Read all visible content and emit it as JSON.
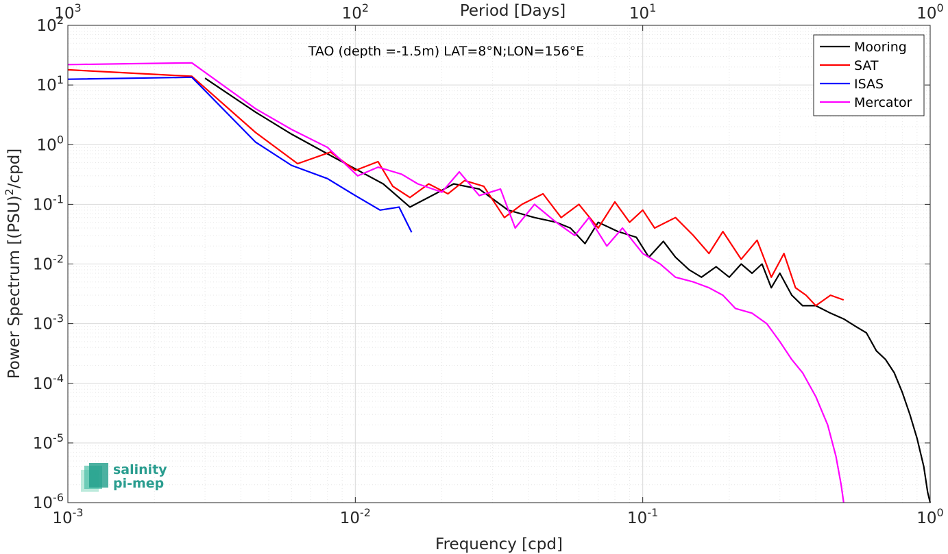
{
  "chart_data": {
    "type": "line",
    "title": "",
    "annotation": "TAO (depth =-1.5m) LAT=8°N;LON=156°E",
    "xlabel": "Frequency [cpd]",
    "ylabel": "Power Spectrum [(PSU)²/cpd]",
    "top_xlabel": "Period [Days]",
    "xscale": "log",
    "yscale": "log",
    "xlim": [
      0.001,
      1
    ],
    "ylim": [
      1e-06,
      100
    ],
    "grid": true,
    "legend_position": "top-right",
    "x_ticks": [
      {
        "value": 0.001,
        "base": "10",
        "exp": "-3"
      },
      {
        "value": 0.01,
        "base": "10",
        "exp": "-2"
      },
      {
        "value": 0.1,
        "base": "10",
        "exp": "-1"
      },
      {
        "value": 1,
        "base": "10",
        "exp": "0"
      }
    ],
    "top_ticks": [
      {
        "value": 0.001,
        "base": "10",
        "exp": "3"
      },
      {
        "value": 0.01,
        "base": "10",
        "exp": "2"
      },
      {
        "value": 0.1,
        "base": "10",
        "exp": "1"
      },
      {
        "value": 1,
        "base": "10",
        "exp": "0"
      }
    ],
    "y_ticks": [
      {
        "value": 1e-06,
        "base": "10",
        "exp": "-6"
      },
      {
        "value": 1e-05,
        "base": "10",
        "exp": "-5"
      },
      {
        "value": 0.0001,
        "base": "10",
        "exp": "-4"
      },
      {
        "value": 0.001,
        "base": "10",
        "exp": "-3"
      },
      {
        "value": 0.01,
        "base": "10",
        "exp": "-2"
      },
      {
        "value": 0.1,
        "base": "10",
        "exp": "-1"
      },
      {
        "value": 1,
        "base": "10",
        "exp": "0"
      },
      {
        "value": 10,
        "base": "10",
        "exp": "1"
      },
      {
        "value": 100,
        "base": "10",
        "exp": "2"
      }
    ],
    "series": [
      {
        "name": "Mooring",
        "color": "#000000",
        "points": [
          [
            0.003,
            13
          ],
          [
            0.0045,
            3.5
          ],
          [
            0.006,
            1.5
          ],
          [
            0.0085,
            0.6
          ],
          [
            0.0125,
            0.22
          ],
          [
            0.0155,
            0.09
          ],
          [
            0.019,
            0.15
          ],
          [
            0.022,
            0.22
          ],
          [
            0.027,
            0.18
          ],
          [
            0.034,
            0.08
          ],
          [
            0.042,
            0.06
          ],
          [
            0.05,
            0.05
          ],
          [
            0.056,
            0.04
          ],
          [
            0.063,
            0.022
          ],
          [
            0.07,
            0.05
          ],
          [
            0.082,
            0.035
          ],
          [
            0.095,
            0.028
          ],
          [
            0.105,
            0.013
          ],
          [
            0.118,
            0.024
          ],
          [
            0.13,
            0.013
          ],
          [
            0.145,
            0.008
          ],
          [
            0.16,
            0.006
          ],
          [
            0.18,
            0.009
          ],
          [
            0.2,
            0.006
          ],
          [
            0.22,
            0.01
          ],
          [
            0.24,
            0.007
          ],
          [
            0.26,
            0.01
          ],
          [
            0.28,
            0.004
          ],
          [
            0.3,
            0.007
          ],
          [
            0.33,
            0.003
          ],
          [
            0.36,
            0.002
          ],
          [
            0.4,
            0.002
          ],
          [
            0.45,
            0.0015
          ],
          [
            0.5,
            0.0012
          ],
          [
            0.55,
            0.0009
          ],
          [
            0.6,
            0.0007
          ],
          [
            0.65,
            0.00035
          ],
          [
            0.7,
            0.00025
          ],
          [
            0.75,
            0.00015
          ],
          [
            0.8,
            7e-05
          ],
          [
            0.85,
            3e-05
          ],
          [
            0.9,
            1.2e-05
          ],
          [
            0.95,
            4e-06
          ],
          [
            0.98,
            1.5e-06
          ],
          [
            1.0,
            1e-06
          ]
        ]
      },
      {
        "name": "SAT",
        "color": "#ff0000",
        "points": [
          [
            0.001,
            18
          ],
          [
            0.0027,
            14
          ],
          [
            0.0045,
            1.6
          ],
          [
            0.0063,
            0.48
          ],
          [
            0.0082,
            0.75
          ],
          [
            0.01,
            0.37
          ],
          [
            0.012,
            0.52
          ],
          [
            0.0135,
            0.2
          ],
          [
            0.0155,
            0.13
          ],
          [
            0.018,
            0.22
          ],
          [
            0.021,
            0.15
          ],
          [
            0.024,
            0.25
          ],
          [
            0.028,
            0.2
          ],
          [
            0.033,
            0.06
          ],
          [
            0.038,
            0.1
          ],
          [
            0.045,
            0.15
          ],
          [
            0.052,
            0.06
          ],
          [
            0.06,
            0.1
          ],
          [
            0.07,
            0.04
          ],
          [
            0.08,
            0.11
          ],
          [
            0.09,
            0.05
          ],
          [
            0.1,
            0.08
          ],
          [
            0.11,
            0.04
          ],
          [
            0.13,
            0.06
          ],
          [
            0.15,
            0.03
          ],
          [
            0.17,
            0.015
          ],
          [
            0.19,
            0.035
          ],
          [
            0.22,
            0.012
          ],
          [
            0.25,
            0.025
          ],
          [
            0.28,
            0.006
          ],
          [
            0.31,
            0.015
          ],
          [
            0.34,
            0.004
          ],
          [
            0.37,
            0.003
          ],
          [
            0.4,
            0.002
          ],
          [
            0.45,
            0.003
          ],
          [
            0.5,
            0.0025
          ]
        ]
      },
      {
        "name": "ISAS",
        "color": "#0000ff",
        "points": [
          [
            0.001,
            12.5
          ],
          [
            0.0027,
            13.5
          ],
          [
            0.0045,
            1.1
          ],
          [
            0.006,
            0.45
          ],
          [
            0.008,
            0.27
          ],
          [
            0.01,
            0.14
          ],
          [
            0.0122,
            0.08
          ],
          [
            0.0142,
            0.09
          ],
          [
            0.0157,
            0.034
          ]
        ]
      },
      {
        "name": "Mercator",
        "color": "#ff00ff",
        "points": [
          [
            0.001,
            22
          ],
          [
            0.0027,
            23.5
          ],
          [
            0.0045,
            4
          ],
          [
            0.006,
            1.8
          ],
          [
            0.008,
            0.9
          ],
          [
            0.0102,
            0.3
          ],
          [
            0.012,
            0.42
          ],
          [
            0.0145,
            0.32
          ],
          [
            0.0165,
            0.22
          ],
          [
            0.02,
            0.16
          ],
          [
            0.023,
            0.35
          ],
          [
            0.027,
            0.14
          ],
          [
            0.032,
            0.18
          ],
          [
            0.036,
            0.04
          ],
          [
            0.042,
            0.1
          ],
          [
            0.05,
            0.05
          ],
          [
            0.058,
            0.03
          ],
          [
            0.065,
            0.06
          ],
          [
            0.075,
            0.02
          ],
          [
            0.085,
            0.04
          ],
          [
            0.1,
            0.015
          ],
          [
            0.115,
            0.01
          ],
          [
            0.13,
            0.006
          ],
          [
            0.15,
            0.005
          ],
          [
            0.17,
            0.004
          ],
          [
            0.19,
            0.003
          ],
          [
            0.21,
            0.0018
          ],
          [
            0.24,
            0.0015
          ],
          [
            0.27,
            0.001
          ],
          [
            0.3,
            0.0005
          ],
          [
            0.33,
            0.00025
          ],
          [
            0.36,
            0.00015
          ],
          [
            0.4,
            6e-05
          ],
          [
            0.44,
            2e-05
          ],
          [
            0.47,
            6e-06
          ],
          [
            0.49,
            2e-06
          ],
          [
            0.5,
            1e-06
          ]
        ]
      }
    ]
  },
  "logo": {
    "line1": "salinity",
    "line2": "pi-mep"
  }
}
